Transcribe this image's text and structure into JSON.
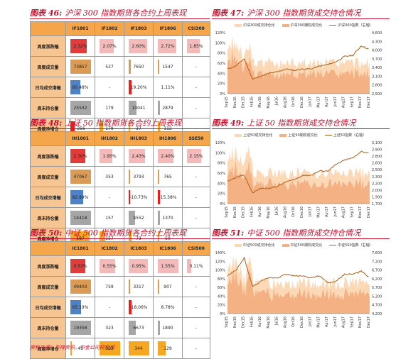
{
  "source": "资料来源：万得资讯，中金公司研究部",
  "colors": {
    "accent": "#c8102e",
    "header": "#f5a54a",
    "rowlabel": "#f7c591",
    "vol": "#f4b183",
    "oi": "#fbd9b7",
    "index": "#b35c14"
  },
  "tables": [
    {
      "title_no": "图表 46:",
      "title": "沪深 300 指数期货各合约上周表现",
      "columns": [
        "IF1801",
        "IF1802",
        "IF1803",
        "IF1806",
        "CSI300"
      ],
      "rows": [
        {
          "label": "周度涨跌幅",
          "cells": [
            {
              "v": "2.32%",
              "bar": "red",
              "frac": 0.75
            },
            {
              "v": "2.07%",
              "bar": "pink",
              "frac": 0.67
            },
            {
              "v": "2.60%",
              "bar": "pink",
              "frac": 0.85
            },
            {
              "v": "2.72%",
              "bar": "pink",
              "frac": 0.88
            },
            {
              "v": "1.85%",
              "bar": "pink",
              "frac": 0.6
            }
          ]
        },
        {
          "label": "周度成交量",
          "cells": [
            {
              "v": "73857",
              "bar": "tan",
              "frac": 0.95
            },
            {
              "v": "527",
              "bar": "",
              "frac": 0
            },
            {
              "v": "7650",
              "bar": "tan",
              "frac": 0.1
            },
            {
              "v": "1547",
              "bar": "tan",
              "frac": 0.02
            },
            {
              "v": "-",
              "bar": "",
              "frac": 0
            }
          ]
        },
        {
          "label": "日均成交增幅",
          "cells": [
            {
              "v": "60.48%",
              "bar": "blue",
              "frac": 0.45
            },
            {
              "v": "-",
              "bar": "",
              "frac": 0
            },
            {
              "v": "19.20%",
              "bar": "negred",
              "frac": 0.12
            },
            {
              "v": "1.11%",
              "bar": "",
              "frac": 0
            },
            {
              "v": "-",
              "bar": "",
              "frac": 0
            }
          ]
        },
        {
          "label": "周末持仓量",
          "cells": [
            {
              "v": "25532",
              "bar": "gray",
              "frac": 0.95
            },
            {
              "v": "179",
              "bar": "",
              "frac": 0
            },
            {
              "v": "10041",
              "bar": "gray",
              "frac": 0.38
            },
            {
              "v": "2879",
              "bar": "gray",
              "frac": 0.1
            },
            {
              "v": "-",
              "bar": "",
              "frac": 0
            }
          ]
        },
        {
          "label": "周度净增仓",
          "cells": [
            {
              "v": "-256",
              "bar": "negred",
              "frac": 0.2
            },
            {
              "v": "179",
              "bar": "orng",
              "frac": 0.15
            },
            {
              "v": "37",
              "bar": "orng",
              "frac": 0.05
            },
            {
              "v": "112",
              "bar": "orng",
              "frac": 0.1
            },
            {
              "v": "-",
              "bar": "",
              "frac": 0
            }
          ]
        }
      ]
    },
    {
      "title_no": "图表 48:",
      "title": "上证 50 指数期货各合约上周表现",
      "columns": [
        "IH1801",
        "IH1802",
        "IH1803",
        "IH1806",
        "SSE50"
      ],
      "rows": [
        {
          "label": "周度涨跌幅",
          "cells": [
            {
              "v": "2.30%",
              "bar": "red",
              "frac": 0.7
            },
            {
              "v": "1.95%",
              "bar": "pink",
              "frac": 0.6
            },
            {
              "v": "2.43%",
              "bar": "pink",
              "frac": 0.75
            },
            {
              "v": "2.40%",
              "bar": "pink",
              "frac": 0.74
            },
            {
              "v": "2.15%",
              "bar": "pink",
              "frac": 0.66
            }
          ]
        },
        {
          "label": "周度成交量",
          "cells": [
            {
              "v": "47067",
              "bar": "tan",
              "frac": 0.95
            },
            {
              "v": "353",
              "bar": "",
              "frac": 0
            },
            {
              "v": "3793",
              "bar": "tan",
              "frac": 0.08
            },
            {
              "v": "765",
              "bar": "tan",
              "frac": 0.02
            },
            {
              "v": "-",
              "bar": "",
              "frac": 0
            }
          ]
        },
        {
          "label": "日均成交增幅",
          "cells": [
            {
              "v": "82.89%",
              "bar": "blue",
              "frac": 0.6
            },
            {
              "v": "-",
              "bar": "",
              "frac": 0
            },
            {
              "v": "-10.73%",
              "bar": "negred",
              "frac": 0.08
            },
            {
              "v": "-15.38%",
              "bar": "negred",
              "frac": 0.1
            },
            {
              "v": "-",
              "bar": "",
              "frac": 0
            }
          ]
        },
        {
          "label": "周末持仓量",
          "cells": [
            {
              "v": "14418",
              "bar": "gray",
              "frac": 0.95
            },
            {
              "v": "157",
              "bar": "",
              "frac": 0
            },
            {
              "v": "4552",
              "bar": "gray",
              "frac": 0.3
            },
            {
              "v": "1370",
              "bar": "gray",
              "frac": 0.09
            },
            {
              "v": "-",
              "bar": "",
              "frac": 0
            }
          ]
        },
        {
          "label": "周度净增仓",
          "cells": [
            {
              "v": "587",
              "bar": "orng",
              "frac": 0.9
            },
            {
              "v": "157",
              "bar": "orng",
              "frac": 0.25
            },
            {
              "v": "73",
              "bar": "orng",
              "frac": 0.12
            },
            {
              "v": "50",
              "bar": "orng",
              "frac": 0.08
            },
            {
              "v": "-",
              "bar": "",
              "frac": 0
            }
          ]
        }
      ]
    },
    {
      "title_no": "图表 50:",
      "title": "中证 500 指数期货各合约上周表现",
      "columns": [
        "IC1801",
        "IC1802",
        "IC1803",
        "IC1806",
        "CSI500"
      ],
      "rows": [
        {
          "label": "周度涨跌幅",
          "cells": [
            {
              "v": "0.53%",
              "bar": "red",
              "frac": 0.7
            },
            {
              "v": "0.55%",
              "bar": "pink",
              "frac": 0.72
            },
            {
              "v": "0.95%",
              "bar": "pink",
              "frac": 0.9
            },
            {
              "v": "1.55%",
              "bar": "pink",
              "frac": 0.98
            },
            {
              "v": "0.11%",
              "bar": "pink",
              "frac": 0.2
            }
          ]
        },
        {
          "label": "周度成交量",
          "cells": [
            {
              "v": "49403",
              "bar": "tan",
              "frac": 0.95
            },
            {
              "v": "759",
              "bar": "",
              "frac": 0
            },
            {
              "v": "3317",
              "bar": "tan",
              "frac": 0.07
            },
            {
              "v": "907",
              "bar": "tan",
              "frac": 0.02
            },
            {
              "v": "-",
              "bar": "",
              "frac": 0
            }
          ]
        },
        {
          "label": "日均成交增幅",
          "cells": [
            {
              "v": "65.19%",
              "bar": "blue",
              "frac": 0.5
            },
            {
              "v": "-",
              "bar": "",
              "frac": 0
            },
            {
              "v": "-18.06%",
              "bar": "negred",
              "frac": 0.12
            },
            {
              "v": "8.78%",
              "bar": "",
              "frac": 0
            },
            {
              "v": "-",
              "bar": "",
              "frac": 0
            }
          ]
        },
        {
          "label": "周末持仓量",
          "cells": [
            {
              "v": "19358",
              "bar": "gray",
              "frac": 0.95
            },
            {
              "v": "323",
              "bar": "",
              "frac": 0
            },
            {
              "v": "6673",
              "bar": "gray",
              "frac": 0.34
            },
            {
              "v": "1890",
              "bar": "gray",
              "frac": 0.1
            },
            {
              "v": "-",
              "bar": "",
              "frac": 0
            }
          ]
        },
        {
          "label": "周度净增仓",
          "cells": [
            {
              "v": "41",
              "bar": "orng",
              "frac": 0.05
            },
            {
              "v": "323",
              "bar": "orng",
              "frac": 0.95
            },
            {
              "v": "344",
              "bar": "orng",
              "frac": 0.98
            },
            {
              "v": "129",
              "bar": "orng",
              "frac": 0.38
            },
            {
              "v": "-",
              "bar": "",
              "frac": 0
            }
          ]
        }
      ]
    }
  ],
  "chart_data": [
    {
      "type": "area",
      "title_no": "图表 47:",
      "title": "沪深 300 指数期货成交持仓情况",
      "legend": [
        "沪深300成交持仓比",
        "沪深300期权成交比",
        "沪深300指数（右轴）"
      ],
      "x_labels": [
        "Sep15",
        "Nov15",
        "Dec15",
        "Feb16",
        "Mar16",
        "May16",
        "Jul16",
        "Aug16",
        "Oct16",
        "Dec16",
        "Jan17",
        "Mar17",
        "Apr17",
        "Jun17",
        "Aug17",
        "Sep17",
        "Nov17",
        "Dec17"
      ],
      "ylim_left": [
        0,
        120
      ],
      "left_ticks": [
        "0%",
        "20%",
        "40%",
        "60%",
        "80%",
        "100%",
        "120%"
      ],
      "ylim_right": [
        2500,
        4600
      ],
      "right_ticks": [
        "2,500",
        "2,800",
        "3,100",
        "3,400",
        "3,700",
        "4,000",
        "4,300",
        "4,600"
      ],
      "index_values": [
        3350,
        3450,
        3700,
        3000,
        3100,
        3200,
        3250,
        3350,
        3300,
        3350,
        3350,
        3450,
        3500,
        3600,
        3780,
        3820,
        4150,
        4020
      ]
    },
    {
      "type": "area",
      "title_no": "图表 49:",
      "title": "上证 50 指数期货成交持仓情况",
      "legend": [
        "上证50成交持仓比",
        "上证50期权成交比",
        "上证50指数（右轴）"
      ],
      "x_labels": [
        "Sep15",
        "Nov15",
        "Dec15",
        "Feb16",
        "Apr16",
        "May16",
        "Jul16",
        "Aug16",
        "Oct16",
        "Dec16",
        "Jan17",
        "Mar17",
        "Apr17",
        "Jun17",
        "Aug17",
        "Sep17",
        "Nov17",
        "Dec17"
      ],
      "ylim_left": [
        0,
        120
      ],
      "left_ticks": [
        "0%",
        "20%",
        "40%",
        "60%",
        "80%",
        "100%",
        "120%"
      ],
      "ylim_right": [
        1700,
        3100
      ],
      "right_ticks": [
        "1,700",
        "1,900",
        "2,000",
        "2,200",
        "2,300",
        "2,500",
        "2,600",
        "2,800",
        "2,900",
        "3,100"
      ],
      "index_values": [
        2200,
        2300,
        2350,
        1950,
        2050,
        2050,
        2100,
        2200,
        2250,
        2350,
        2350,
        2450,
        2450,
        2600,
        2700,
        2750,
        2900,
        2850
      ]
    },
    {
      "type": "area",
      "title_no": "图表 51:",
      "title": "中证 500 指数期货成交持仓情况",
      "legend": [
        "中证500成交持仓比",
        "中证500期权成交比",
        "中证500指数（右轴）"
      ],
      "x_labels": [
        "Sep15",
        "Nov15",
        "Dec15",
        "Feb16",
        "Apr16",
        "May16",
        "Jul16",
        "Aug16",
        "Oct16",
        "Dec16",
        "Jan17",
        "Mar17",
        "Apr17",
        "Jun17",
        "Aug17",
        "Sep17",
        "Nov17",
        "Dec17"
      ],
      "ylim_left": [
        0,
        140
      ],
      "left_ticks": [
        "0%",
        "20%",
        "40%",
        "60%",
        "80%",
        "100%",
        "120%",
        "140%"
      ],
      "ylim_right": [
        4200,
        7600
      ],
      "right_ticks": [
        "4,200",
        "4,700",
        "5,200",
        "5,700",
        "6,200",
        "6,700",
        "7,200",
        "7,600"
      ],
      "index_values": [
        6300,
        6600,
        7300,
        5700,
        6000,
        6200,
        6200,
        6400,
        6300,
        6300,
        6200,
        6300,
        5900,
        6000,
        6400,
        6400,
        6550,
        6200
      ]
    }
  ]
}
